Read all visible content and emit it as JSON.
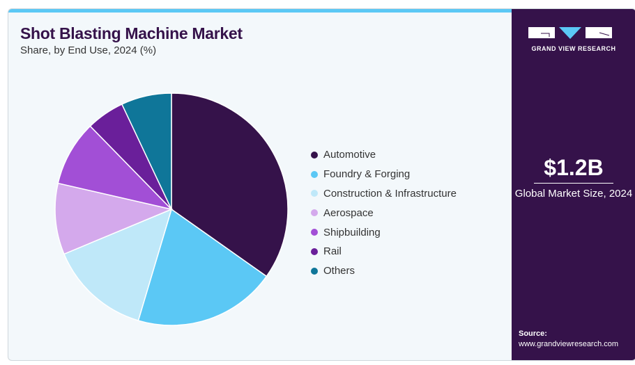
{
  "header": {
    "title": "Shot Blasting Machine Market",
    "subtitle": "Share, by End Use, 2024 (%)"
  },
  "side": {
    "brand": "GRAND VIEW RESEARCH",
    "value": "$1.2B",
    "caption": "Global Market Size, 2024",
    "source_label": "Source:",
    "source_url": "www.grandviewresearch.com"
  },
  "chart_data": {
    "type": "pie",
    "title": "Shot Blasting Machine Market",
    "subtitle": "Share, by End Use, 2024 (%)",
    "legend_position": "right",
    "slices": [
      {
        "label": "Automotive",
        "value": 34.8,
        "color": "#35124a"
      },
      {
        "label": "Foundry & Forging",
        "value": 19.8,
        "color": "#5bc8f5"
      },
      {
        "label": "Construction & Infrastructure",
        "value": 14.1,
        "color": "#bfe8f9"
      },
      {
        "label": "Aerospace",
        "value": 9.9,
        "color": "#d4a9ec"
      },
      {
        "label": "Shipbuilding",
        "value": 9.1,
        "color": "#a24fd6"
      },
      {
        "label": "Rail",
        "value": 5.3,
        "color": "#6a1f9a"
      },
      {
        "label": "Others",
        "value": 7.0,
        "color": "#0f7699"
      }
    ]
  }
}
